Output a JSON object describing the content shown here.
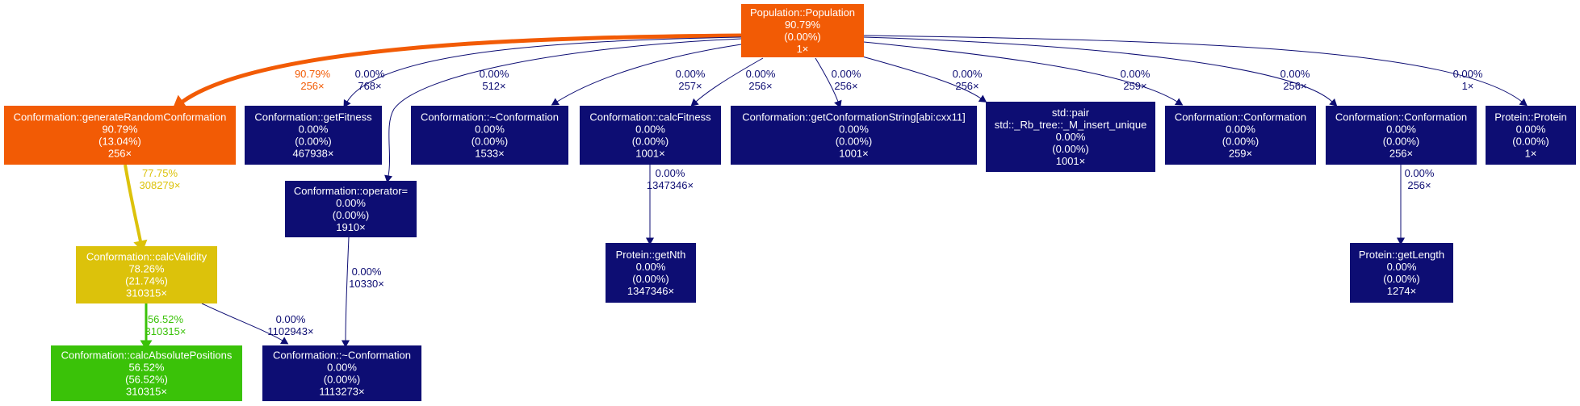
{
  "colors": {
    "hot": "#f25b05",
    "warm": "#dcc20b",
    "green": "#3ac208",
    "cold": "#0d0d73",
    "edge_cold": "#0d0d73",
    "node_text": "#ffffff",
    "background": "#ffffff"
  },
  "nodes": [
    {
      "id": "population",
      "lines": [
        "Population::Population",
        "90.79%",
        "(0.00%)",
        "1×"
      ],
      "color": "hot"
    },
    {
      "id": "generate",
      "lines": [
        "Conformation::generateRandomConformation",
        "90.79%",
        "(13.04%)",
        "256×"
      ],
      "color": "hot"
    },
    {
      "id": "getfitness",
      "lines": [
        "Conformation::getFitness",
        "0.00%",
        "(0.00%)",
        "467938×"
      ],
      "color": "cold"
    },
    {
      "id": "dtor1",
      "lines": [
        "Conformation::~Conformation",
        "0.00%",
        "(0.00%)",
        "1533×"
      ],
      "color": "cold"
    },
    {
      "id": "calcfitness",
      "lines": [
        "Conformation::calcFitness",
        "0.00%",
        "(0.00%)",
        "1001×"
      ],
      "color": "cold"
    },
    {
      "id": "getconfstr",
      "lines": [
        "Conformation::getConformationString[abi:cxx11]",
        "0.00%",
        "(0.00%)",
        "1001×"
      ],
      "color": "cold"
    },
    {
      "id": "stdpair",
      "lines": [
        "std::pair",
        "std::_Rb_tree::_M_insert_unique",
        "0.00%",
        "(0.00%)",
        "1001×"
      ],
      "color": "cold"
    },
    {
      "id": "conf259",
      "lines": [
        "Conformation::Conformation",
        "0.00%",
        "(0.00%)",
        "259×"
      ],
      "color": "cold"
    },
    {
      "id": "conf256",
      "lines": [
        "Conformation::Conformation",
        "0.00%",
        "(0.00%)",
        "256×"
      ],
      "color": "cold"
    },
    {
      "id": "protein",
      "lines": [
        "Protein::Protein",
        "0.00%",
        "(0.00%)",
        "1×"
      ],
      "color": "cold"
    },
    {
      "id": "operator",
      "lines": [
        "Conformation::operator=",
        "0.00%",
        "(0.00%)",
        "1910×"
      ],
      "color": "cold"
    },
    {
      "id": "calcvalidity",
      "lines": [
        "Conformation::calcValidity",
        "78.26%",
        "(21.74%)",
        "310315×"
      ],
      "color": "warm"
    },
    {
      "id": "getnth",
      "lines": [
        "Protein::getNth",
        "0.00%",
        "(0.00%)",
        "1347346×"
      ],
      "color": "cold"
    },
    {
      "id": "getlength",
      "lines": [
        "Protein::getLength",
        "0.00%",
        "(0.00%)",
        "1274×"
      ],
      "color": "cold"
    },
    {
      "id": "calcabs",
      "lines": [
        "Conformation::calcAbsolutePositions",
        "56.52%",
        "(56.52%)",
        "310315×"
      ],
      "color": "green"
    },
    {
      "id": "dtor2",
      "lines": [
        "Conformation::~Conformation",
        "0.00%",
        "(0.00%)",
        "1113273×"
      ],
      "color": "cold"
    }
  ],
  "edges": [
    {
      "from": "population",
      "to": "generate",
      "label": [
        "90.79%",
        "256×"
      ],
      "color": "hot",
      "weight": 5
    },
    {
      "from": "population",
      "to": "getfitness",
      "label": [
        "0.00%",
        "768×"
      ],
      "color": "edge_cold",
      "weight": 1
    },
    {
      "from": "population",
      "to": "operator",
      "label": [
        "0.00%",
        "512×"
      ],
      "color": "edge_cold",
      "weight": 1
    },
    {
      "from": "population",
      "to": "dtor1",
      "label": [
        "0.00%",
        "257×"
      ],
      "color": "edge_cold",
      "weight": 1
    },
    {
      "from": "population",
      "to": "calcfitness",
      "label": [
        "0.00%",
        "256×"
      ],
      "color": "edge_cold",
      "weight": 1
    },
    {
      "from": "population",
      "to": "getconfstr",
      "label": [
        "0.00%",
        "256×"
      ],
      "color": "edge_cold",
      "weight": 1
    },
    {
      "from": "population",
      "to": "stdpair",
      "label": [
        "0.00%",
        "256×"
      ],
      "color": "edge_cold",
      "weight": 1
    },
    {
      "from": "population",
      "to": "conf259",
      "label": [
        "0.00%",
        "259×"
      ],
      "color": "edge_cold",
      "weight": 1
    },
    {
      "from": "population",
      "to": "conf256",
      "label": [
        "0.00%",
        "256×"
      ],
      "color": "edge_cold",
      "weight": 1
    },
    {
      "from": "population",
      "to": "protein",
      "label": [
        "0.00%",
        "1×"
      ],
      "color": "edge_cold",
      "weight": 1
    },
    {
      "from": "generate",
      "to": "calcvalidity",
      "label": [
        "77.75%",
        "308279×"
      ],
      "color": "warm",
      "weight": 4
    },
    {
      "from": "calcfitness",
      "to": "getnth",
      "label": [
        "0.00%",
        "1347346×"
      ],
      "color": "edge_cold",
      "weight": 1
    },
    {
      "from": "conf256",
      "to": "getlength",
      "label": [
        "0.00%",
        "256×"
      ],
      "color": "edge_cold",
      "weight": 1
    },
    {
      "from": "operator",
      "to": "dtor2",
      "label": [
        "0.00%",
        "10330×"
      ],
      "color": "edge_cold",
      "weight": 1
    },
    {
      "from": "calcvalidity",
      "to": "calcabs",
      "label": [
        "56.52%",
        "310315×"
      ],
      "color": "green",
      "weight": 3
    },
    {
      "from": "calcvalidity",
      "to": "dtor2",
      "label": [
        "0.00%",
        "1102943×"
      ],
      "color": "edge_cold",
      "weight": 1
    }
  ]
}
